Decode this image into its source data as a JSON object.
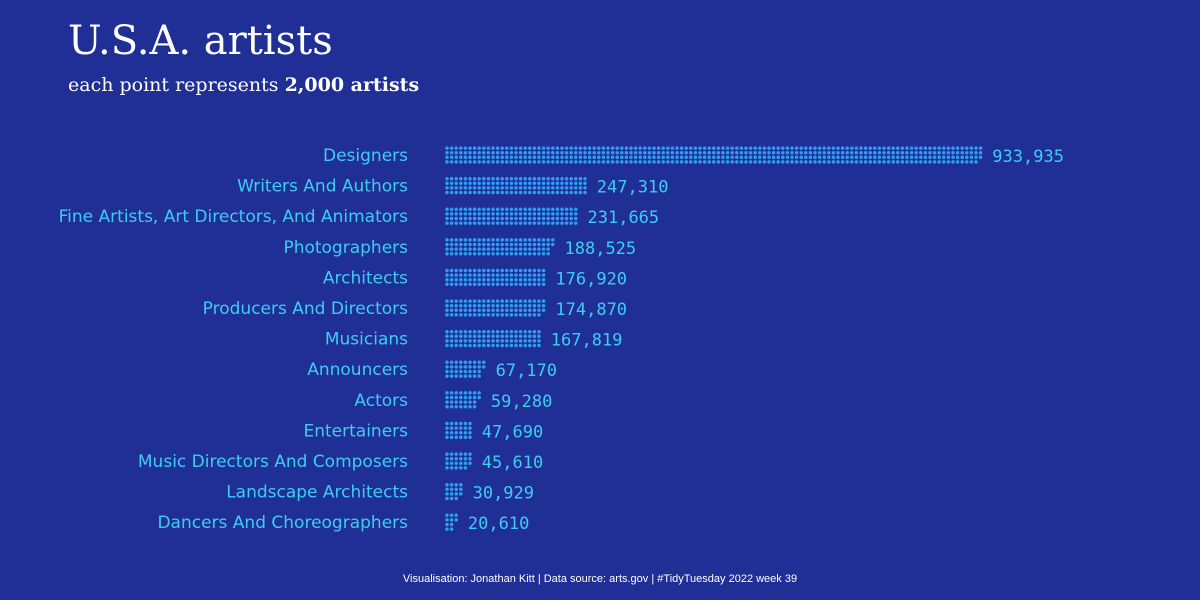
{
  "title": "U.S.A. artists",
  "subtitle_prefix": "each point represents ",
  "subtitle_bold": "2,000 artists",
  "caption": "Visualisation: Jonathan Kitt | Data source: arts.gov | #TidyTuesday 2022 week 39",
  "colors": {
    "background": "#1f2f96",
    "dot": "#2e9ff0",
    "label": "#3ecdf0",
    "text": "#ffffff"
  },
  "chart_data": {
    "type": "bar",
    "style": "dot-waffle",
    "artists_per_point": 2000,
    "categories": [
      "Designers",
      "Writers And Authors",
      "Fine Artists, Art Directors, And Animators",
      "Photographers",
      "Architects",
      "Producers And Directors",
      "Musicians",
      "Announcers",
      "Actors",
      "Entertainers",
      "Music Directors And Composers",
      "Landscape Architects",
      "Dancers And Choreographers"
    ],
    "values": [
      933935,
      247310,
      231665,
      188525,
      176920,
      174870,
      167819,
      67170,
      59280,
      47690,
      45610,
      30929,
      20610
    ],
    "value_labels": [
      "933,935",
      "247,310",
      "231,665",
      "188,525",
      "176,920",
      "174,870",
      "167,819",
      "67,170",
      "59,280",
      "47,690",
      "45,610",
      "30,929",
      "20,610"
    ]
  }
}
